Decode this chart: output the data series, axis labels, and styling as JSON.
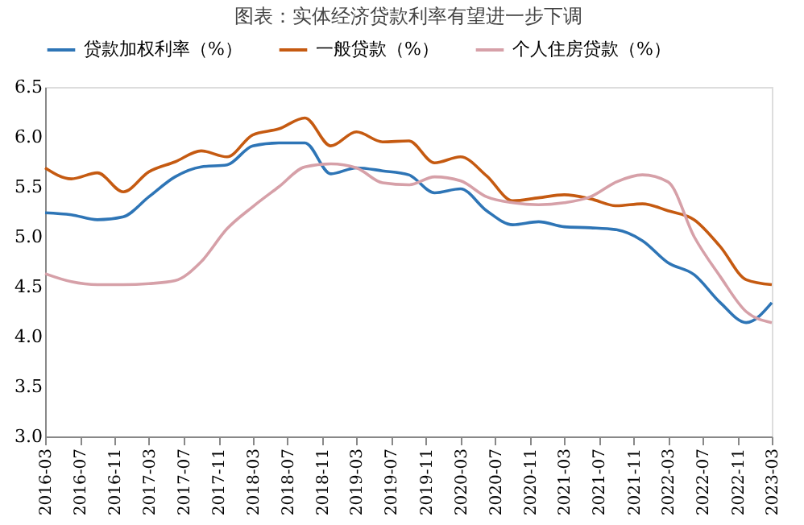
{
  "chart_data": {
    "type": "line",
    "title": "图表：实体经济贷款利率有望进一步下调",
    "x": [
      "2016-03",
      "2016-06",
      "2016-09",
      "2016-12",
      "2017-03",
      "2017-06",
      "2017-09",
      "2017-12",
      "2018-03",
      "2018-06",
      "2018-09",
      "2018-12",
      "2019-03",
      "2019-06",
      "2019-09",
      "2019-12",
      "2020-03",
      "2020-06",
      "2020-09",
      "2020-12",
      "2021-03",
      "2021-06",
      "2021-09",
      "2021-12",
      "2022-03",
      "2022-06",
      "2022-09",
      "2022-12",
      "2023-03"
    ],
    "series": [
      {
        "name": "贷款加权利率（%）",
        "color": "#2e75b6",
        "values": [
          5.24,
          5.22,
          5.17,
          5.2,
          5.4,
          5.6,
          5.7,
          5.72,
          5.91,
          5.94,
          5.94,
          5.63,
          5.69,
          5.66,
          5.62,
          5.44,
          5.48,
          5.26,
          5.12,
          5.15,
          5.1,
          5.09,
          5.07,
          4.96,
          4.74,
          4.62,
          4.34,
          4.14,
          4.34
        ]
      },
      {
        "name": "一般贷款（%）",
        "color": "#c55a11",
        "values": [
          5.69,
          5.58,
          5.64,
          5.45,
          5.65,
          5.75,
          5.86,
          5.8,
          6.02,
          6.08,
          6.19,
          5.91,
          6.05,
          5.95,
          5.96,
          5.74,
          5.8,
          5.61,
          5.36,
          5.39,
          5.42,
          5.38,
          5.31,
          5.33,
          5.26,
          5.17,
          4.9,
          4.57,
          4.52
        ]
      },
      {
        "name": "个人住房贷款（%）",
        "color": "#d6a0a8",
        "values": [
          4.63,
          4.55,
          4.52,
          4.52,
          4.53,
          4.56,
          4.75,
          5.08,
          5.3,
          5.5,
          5.7,
          5.73,
          5.69,
          5.54,
          5.52,
          5.6,
          5.56,
          5.4,
          5.34,
          5.32,
          5.34,
          5.4,
          5.55,
          5.62,
          5.55,
          5.0,
          4.6,
          4.25,
          4.14
        ]
      }
    ],
    "xlim": [
      "2016-03",
      "2023-03"
    ],
    "xticks": [
      "2016-03",
      "2016-07",
      "2016-11",
      "2017-03",
      "2017-07",
      "2017-11",
      "2018-03",
      "2018-07",
      "2018-11",
      "2019-03",
      "2019-07",
      "2019-11",
      "2020-03",
      "2020-07",
      "2020-11",
      "2021-03",
      "2021-07",
      "2021-11",
      "2022-03",
      "2022-07",
      "2022-11",
      "2023-03"
    ],
    "ylim": [
      3.0,
      6.5
    ],
    "yticks": [
      {
        "value": 3.0,
        "label": "3.0"
      },
      {
        "value": 3.5,
        "label": "3.5"
      },
      {
        "value": 4.0,
        "label": "4.0"
      },
      {
        "value": 4.5,
        "label": "4.5"
      },
      {
        "value": 5.0,
        "label": "5.0"
      },
      {
        "value": 5.5,
        "label": "5.5"
      },
      {
        "value": 6.0,
        "label": "6.0"
      },
      {
        "value": 6.5,
        "label": "6.5"
      }
    ],
    "grid": false,
    "legend": "top",
    "marker": "none",
    "line_style": "solid"
  }
}
